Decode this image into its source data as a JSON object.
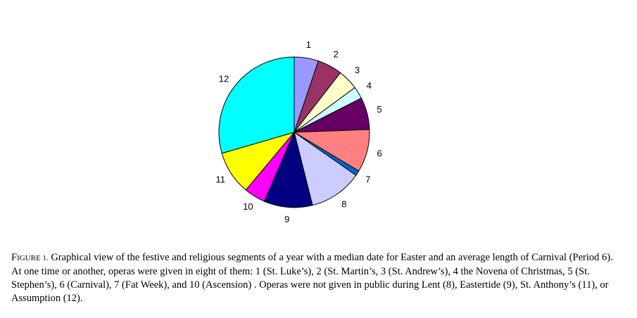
{
  "chart_data": {
    "type": "pie",
    "categories": [
      "1",
      "2",
      "3",
      "4",
      "5",
      "6",
      "7",
      "8",
      "9",
      "10",
      "11",
      "12"
    ],
    "values": [
      5.2,
      5.3,
      4.4,
      2.6,
      6.9,
      9.2,
      1.1,
      11.4,
      10.4,
      4.6,
      9.4,
      29.5
    ],
    "colors": [
      "#9999ff",
      "#993366",
      "#ffffcc",
      "#ccffff",
      "#660066",
      "#ff8080",
      "#0066cc",
      "#ccccff",
      "#000080",
      "#ff00ff",
      "#ffff00",
      "#00ffff"
    ]
  },
  "caption": {
    "label": "FIGURE 1.",
    "text": "Graphical view of the festive and religious segments of a year with a median date for Easter and an average length of Carnival (Period 6). At one time or another, operas were given in eight of them: 1 (St. Luke’s), 2 (St. Martin’s, 3 (St. Andrew’s), 4 the Novena of Christmas, 5 (St. Stephen’s), 6 (Carnival), 7 (Fat Week), and 10 (Ascension) . Operas were not given in public during Lent (8), Eastertide (9), St. Anthony’s (11), or Assumption (12)."
  }
}
